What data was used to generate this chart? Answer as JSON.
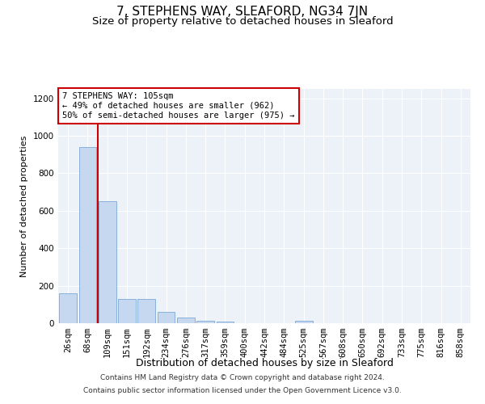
{
  "title": "7, STEPHENS WAY, SLEAFORD, NG34 7JN",
  "subtitle": "Size of property relative to detached houses in Sleaford",
  "xlabel": "Distribution of detached houses by size in Sleaford",
  "ylabel": "Number of detached properties",
  "categories": [
    "26sqm",
    "68sqm",
    "109sqm",
    "151sqm",
    "192sqm",
    "234sqm",
    "276sqm",
    "317sqm",
    "359sqm",
    "400sqm",
    "442sqm",
    "484sqm",
    "525sqm",
    "567sqm",
    "608sqm",
    "650sqm",
    "692sqm",
    "733sqm",
    "775sqm",
    "816sqm",
    "858sqm"
  ],
  "values": [
    160,
    940,
    650,
    130,
    130,
    60,
    30,
    15,
    10,
    0,
    0,
    0,
    15,
    0,
    0,
    0,
    0,
    0,
    0,
    0,
    0
  ],
  "bar_color": "#c5d8ef",
  "bar_edgecolor": "#7ba8d4",
  "vline_x_index": 2,
  "vline_color": "#cc0000",
  "annotation_text": "7 STEPHENS WAY: 105sqm\n← 49% of detached houses are smaller (962)\n50% of semi-detached houses are larger (975) →",
  "annotation_box_color": "#ffffff",
  "annotation_box_edgecolor": "#cc0000",
  "ylim": [
    0,
    1250
  ],
  "yticks": [
    0,
    200,
    400,
    600,
    800,
    1000,
    1200
  ],
  "background_color": "#edf2f9",
  "grid_color": "#ffffff",
  "footer_line1": "Contains HM Land Registry data © Crown copyright and database right 2024.",
  "footer_line2": "Contains public sector information licensed under the Open Government Licence v3.0.",
  "title_fontsize": 11,
  "subtitle_fontsize": 9.5,
  "xlabel_fontsize": 9,
  "ylabel_fontsize": 8,
  "tick_fontsize": 7.5,
  "annotation_fontsize": 7.5,
  "footer_fontsize": 6.5
}
